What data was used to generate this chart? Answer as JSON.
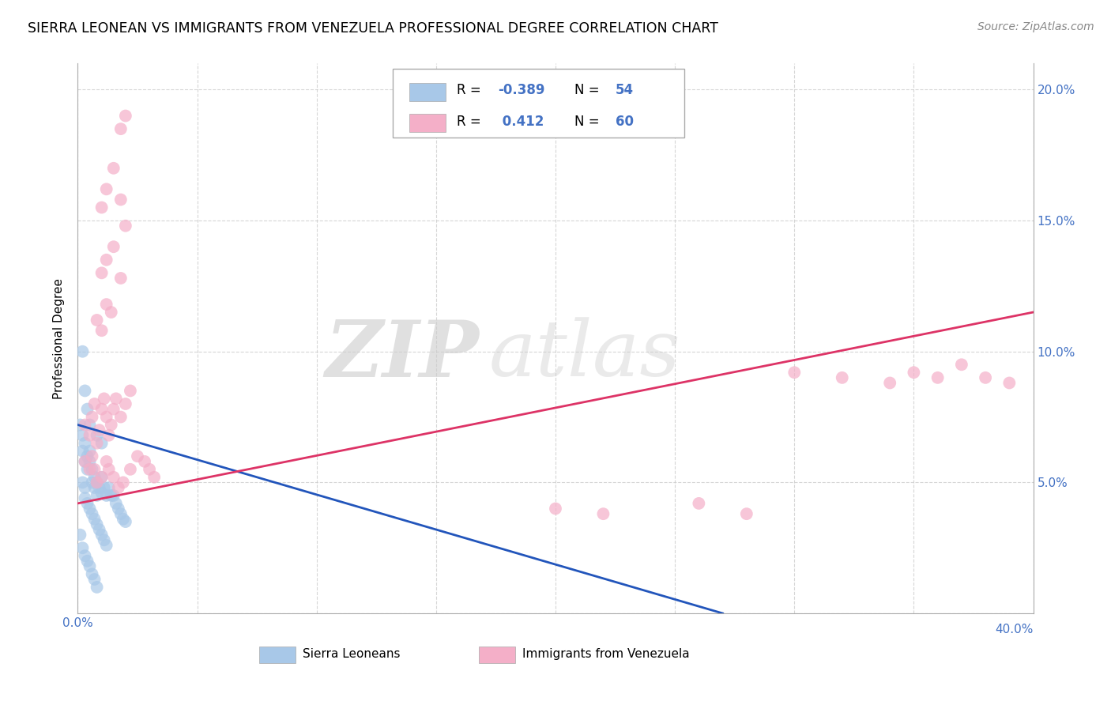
{
  "title": "SIERRA LEONEAN VS IMMIGRANTS FROM VENEZUELA PROFESSIONAL DEGREE CORRELATION CHART",
  "source": "Source: ZipAtlas.com",
  "ylabel": "Professional Degree",
  "xlim": [
    0.0,
    0.4
  ],
  "ylim": [
    0.0,
    0.21
  ],
  "xticks": [
    0.0,
    0.05,
    0.1,
    0.15,
    0.2,
    0.25,
    0.3,
    0.35,
    0.4
  ],
  "yticks": [
    0.0,
    0.05,
    0.1,
    0.15,
    0.2
  ],
  "xtick_labels_left": [
    "0.0%",
    "",
    "",
    "",
    "",
    "",
    "",
    "",
    ""
  ],
  "xtick_labels_right": [
    "",
    "",
    "",
    "",
    "",
    "",
    "",
    "",
    "40.0%"
  ],
  "ytick_labels_right": [
    "",
    "5.0%",
    "10.0%",
    "15.0%",
    "20.0%"
  ],
  "ytick_labels_left": [
    "",
    "",
    "",
    "",
    ""
  ],
  "blue_color": "#a8c8e8",
  "pink_color": "#f4afc8",
  "blue_line_color": "#2255bb",
  "pink_line_color": "#dd3366",
  "watermark_zip": "ZIP",
  "watermark_atlas": "atlas",
  "background_color": "#ffffff",
  "grid_color": "#cccccc",
  "blue_line": [
    [
      0.0,
      0.072
    ],
    [
      0.27,
      0.0
    ]
  ],
  "pink_line": [
    [
      0.0,
      0.042
    ],
    [
      0.4,
      0.115
    ]
  ],
  "blue_scatter": [
    [
      0.001,
      0.072
    ],
    [
      0.002,
      0.068
    ],
    [
      0.002,
      0.062
    ],
    [
      0.003,
      0.065
    ],
    [
      0.003,
      0.058
    ],
    [
      0.004,
      0.06
    ],
    [
      0.004,
      0.055
    ],
    [
      0.005,
      0.062
    ],
    [
      0.005,
      0.058
    ],
    [
      0.006,
      0.055
    ],
    [
      0.006,
      0.05
    ],
    [
      0.007,
      0.052
    ],
    [
      0.007,
      0.048
    ],
    [
      0.008,
      0.05
    ],
    [
      0.008,
      0.045
    ],
    [
      0.009,
      0.048
    ],
    [
      0.01,
      0.052
    ],
    [
      0.01,
      0.046
    ],
    [
      0.011,
      0.048
    ],
    [
      0.012,
      0.045
    ],
    [
      0.013,
      0.048
    ],
    [
      0.014,
      0.045
    ],
    [
      0.015,
      0.045
    ],
    [
      0.016,
      0.042
    ],
    [
      0.017,
      0.04
    ],
    [
      0.018,
      0.038
    ],
    [
      0.019,
      0.036
    ],
    [
      0.02,
      0.035
    ],
    [
      0.002,
      0.05
    ],
    [
      0.003,
      0.048
    ],
    [
      0.003,
      0.044
    ],
    [
      0.004,
      0.042
    ],
    [
      0.005,
      0.04
    ],
    [
      0.006,
      0.038
    ],
    [
      0.007,
      0.036
    ],
    [
      0.008,
      0.034
    ],
    [
      0.009,
      0.032
    ],
    [
      0.01,
      0.03
    ],
    [
      0.011,
      0.028
    ],
    [
      0.012,
      0.026
    ],
    [
      0.001,
      0.03
    ],
    [
      0.002,
      0.025
    ],
    [
      0.003,
      0.022
    ],
    [
      0.004,
      0.02
    ],
    [
      0.005,
      0.018
    ],
    [
      0.006,
      0.015
    ],
    [
      0.007,
      0.013
    ],
    [
      0.008,
      0.01
    ],
    [
      0.002,
      0.1
    ],
    [
      0.003,
      0.085
    ],
    [
      0.004,
      0.078
    ],
    [
      0.005,
      0.072
    ],
    [
      0.008,
      0.068
    ],
    [
      0.01,
      0.065
    ]
  ],
  "pink_scatter": [
    [
      0.003,
      0.072
    ],
    [
      0.005,
      0.068
    ],
    [
      0.006,
      0.075
    ],
    [
      0.007,
      0.08
    ],
    [
      0.008,
      0.065
    ],
    [
      0.009,
      0.07
    ],
    [
      0.01,
      0.078
    ],
    [
      0.011,
      0.082
    ],
    [
      0.012,
      0.075
    ],
    [
      0.013,
      0.068
    ],
    [
      0.014,
      0.072
    ],
    [
      0.015,
      0.078
    ],
    [
      0.016,
      0.082
    ],
    [
      0.018,
      0.075
    ],
    [
      0.02,
      0.08
    ],
    [
      0.022,
      0.085
    ],
    [
      0.003,
      0.058
    ],
    [
      0.005,
      0.055
    ],
    [
      0.006,
      0.06
    ],
    [
      0.007,
      0.055
    ],
    [
      0.008,
      0.05
    ],
    [
      0.01,
      0.052
    ],
    [
      0.012,
      0.058
    ],
    [
      0.013,
      0.055
    ],
    [
      0.015,
      0.052
    ],
    [
      0.017,
      0.048
    ],
    [
      0.019,
      0.05
    ],
    [
      0.022,
      0.055
    ],
    [
      0.025,
      0.06
    ],
    [
      0.028,
      0.058
    ],
    [
      0.03,
      0.055
    ],
    [
      0.032,
      0.052
    ],
    [
      0.008,
      0.112
    ],
    [
      0.01,
      0.108
    ],
    [
      0.012,
      0.118
    ],
    [
      0.014,
      0.115
    ],
    [
      0.01,
      0.13
    ],
    [
      0.012,
      0.135
    ],
    [
      0.015,
      0.14
    ],
    [
      0.018,
      0.128
    ],
    [
      0.01,
      0.155
    ],
    [
      0.012,
      0.162
    ],
    [
      0.015,
      0.17
    ],
    [
      0.018,
      0.158
    ],
    [
      0.02,
      0.148
    ],
    [
      0.018,
      0.185
    ],
    [
      0.02,
      0.19
    ],
    [
      0.2,
      0.04
    ],
    [
      0.22,
      0.038
    ],
    [
      0.26,
      0.042
    ],
    [
      0.28,
      0.038
    ],
    [
      0.3,
      0.092
    ],
    [
      0.32,
      0.09
    ],
    [
      0.34,
      0.088
    ],
    [
      0.35,
      0.092
    ],
    [
      0.36,
      0.09
    ],
    [
      0.37,
      0.095
    ],
    [
      0.38,
      0.09
    ],
    [
      0.39,
      0.088
    ]
  ]
}
